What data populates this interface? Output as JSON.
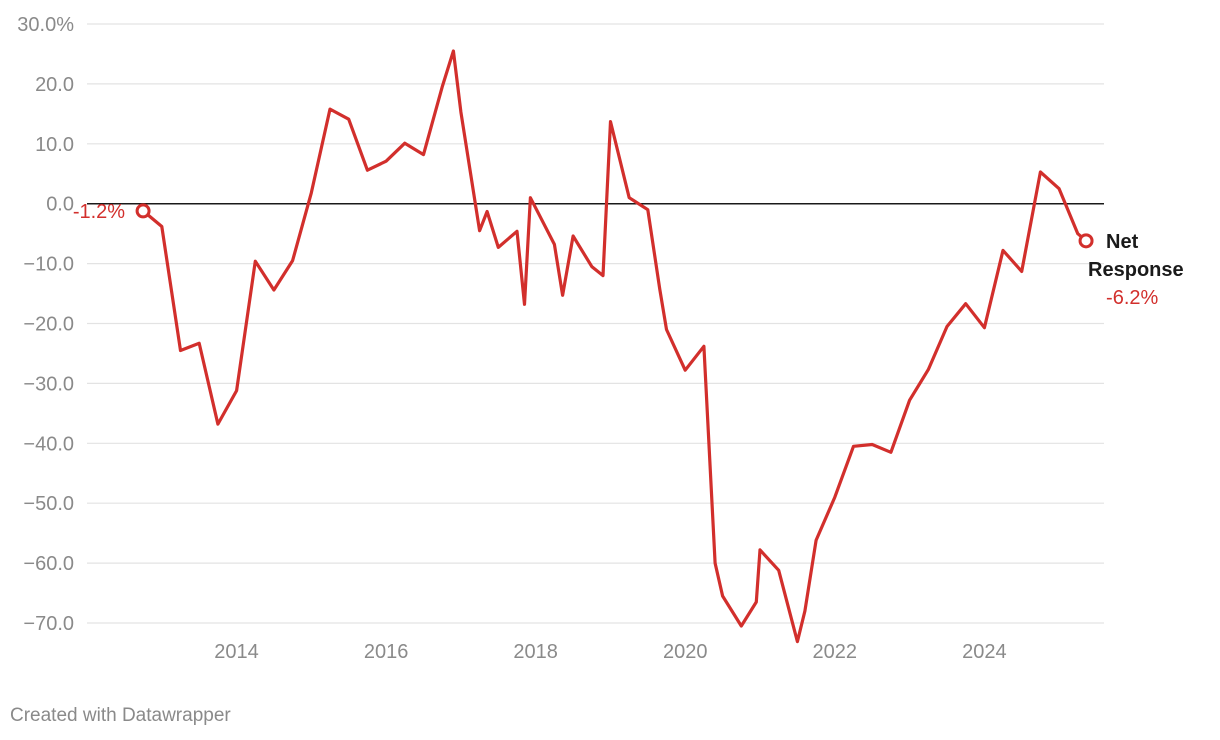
{
  "chart_data": {
    "type": "line",
    "y_unit_suffix": "%",
    "ylim": [
      -75,
      30
    ],
    "yticks": [
      30,
      20,
      10,
      0,
      -10,
      -20,
      -30,
      -40,
      -50,
      -60,
      -70
    ],
    "xlim": [
      2012.0,
      2025.6
    ],
    "xticks": [
      2014,
      2016,
      2018,
      2020,
      2022,
      2024
    ],
    "grid": true,
    "zero_line": true,
    "colors": {
      "line": "#d22f2c",
      "grid": "#e3e3e3",
      "zero": "#1a1a1a",
      "tick_text": "#8a8a8a",
      "label_dark": "#1a1a1a"
    },
    "series": [
      {
        "name": "Net Response",
        "start_label": "-1.2%",
        "end_label": "-6.2%",
        "x": [
          2012.75,
          2013.0,
          2013.25,
          2013.5,
          2013.75,
          2014.0,
          2014.25,
          2014.5,
          2014.75,
          2015.0,
          2015.25,
          2015.5,
          2015.75,
          2016.0,
          2016.25,
          2016.5,
          2016.75,
          2016.9,
          2017.0,
          2017.25,
          2017.35,
          2017.5,
          2017.75,
          2017.85,
          2017.93,
          2018.25,
          2018.36,
          2018.5,
          2018.75,
          2018.9,
          2019.0,
          2019.25,
          2019.5,
          2019.66,
          2019.75,
          2020.0,
          2020.25,
          2020.4,
          2020.5,
          2020.75,
          2020.95,
          2021.0,
          2021.25,
          2021.5,
          2021.6,
          2021.75,
          2022.0,
          2022.25,
          2022.5,
          2022.75,
          2023.0,
          2023.25,
          2023.5,
          2023.75,
          2024.0,
          2024.25,
          2024.5,
          2024.75,
          2025.0,
          2025.25,
          2025.36
        ],
        "values": [
          -1.2,
          -3.8,
          -24.5,
          -23.3,
          -36.8,
          -31.2,
          -9.6,
          -14.4,
          -9.5,
          1.8,
          15.8,
          14.1,
          5.6,
          7.1,
          10.1,
          8.2,
          19.5,
          25.5,
          15.3,
          -4.5,
          -1.3,
          -7.3,
          -4.6,
          -16.8,
          1.0,
          -6.8,
          -15.3,
          -5.4,
          -10.5,
          -12.0,
          13.7,
          1.0,
          -1.0,
          -14.3,
          -21.0,
          -27.8,
          -23.8,
          -60.0,
          -65.5,
          -70.5,
          -66.5,
          -57.8,
          -61.2,
          -73.1,
          -68.0,
          -56.2,
          -49.0,
          -40.5,
          -40.2,
          -41.5,
          -32.8,
          -27.7,
          -20.5,
          -16.7,
          -20.7,
          -7.8,
          -11.3,
          5.3,
          2.5,
          -5.0,
          -6.2
        ]
      }
    ]
  },
  "footer": {
    "credit": "Created with Datawrapper"
  }
}
